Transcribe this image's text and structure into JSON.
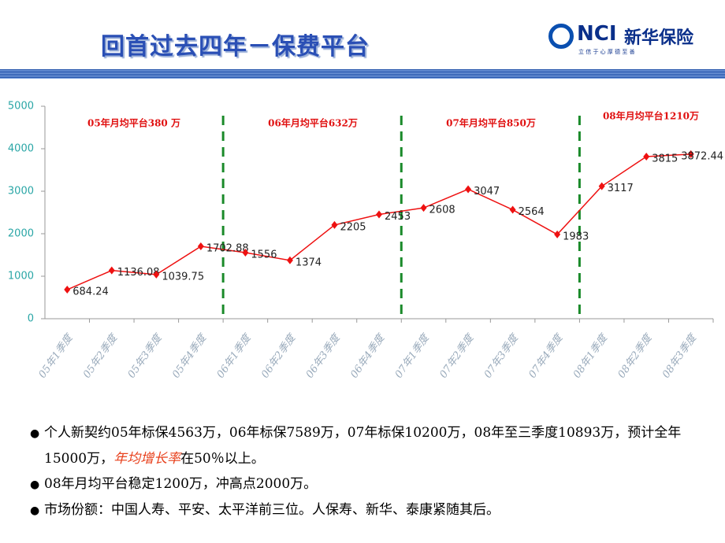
{
  "header": {
    "title": "回首过去四年－保费平台",
    "logo_mark": "NCI",
    "logo_name": "新华保险",
    "logo_motto": "立 信 于 心 厚 德 至 善"
  },
  "chart_data": {
    "type": "line",
    "categories": [
      "05年1季度",
      "05年2季度",
      "05年3季度",
      "05年4季度",
      "06年1季度",
      "06年2季度",
      "06年3季度",
      "06年4季度",
      "07年1季度",
      "07年2季度",
      "07年3季度",
      "07年4季度",
      "08年1季度",
      "08年2季度",
      "08年3季度"
    ],
    "values": [
      684.24,
      1136.08,
      1039.75,
      1702.88,
      1556,
      1374,
      2205,
      2453,
      2608,
      3047,
      2564,
      1983,
      3117,
      3815,
      3872.44
    ],
    "color": "#ee1111",
    "ylim": [
      0,
      5000
    ],
    "yticks": [
      0,
      1000,
      2000,
      3000,
      4000,
      5000
    ],
    "annotations": [
      "05年月均平台380 万",
      "06年月均平台632万",
      "07年月均平台850万",
      "08年月均平台1210万"
    ]
  },
  "bullets": [
    {
      "text": "个人新契约05年标保4563万，06年标保7589万，07年标保10200万，08年至三季度10893万，预计全年15000万，",
      "highlight": "年均增长率",
      "tail": "在50％以上。"
    },
    {
      "text": "08年月均平台稳定1200万，冲高点2000万。"
    },
    {
      "text": "市场份额：中国人寿、平安、太平洋前三位。人保寿、新华、泰康紧随其后。"
    }
  ]
}
